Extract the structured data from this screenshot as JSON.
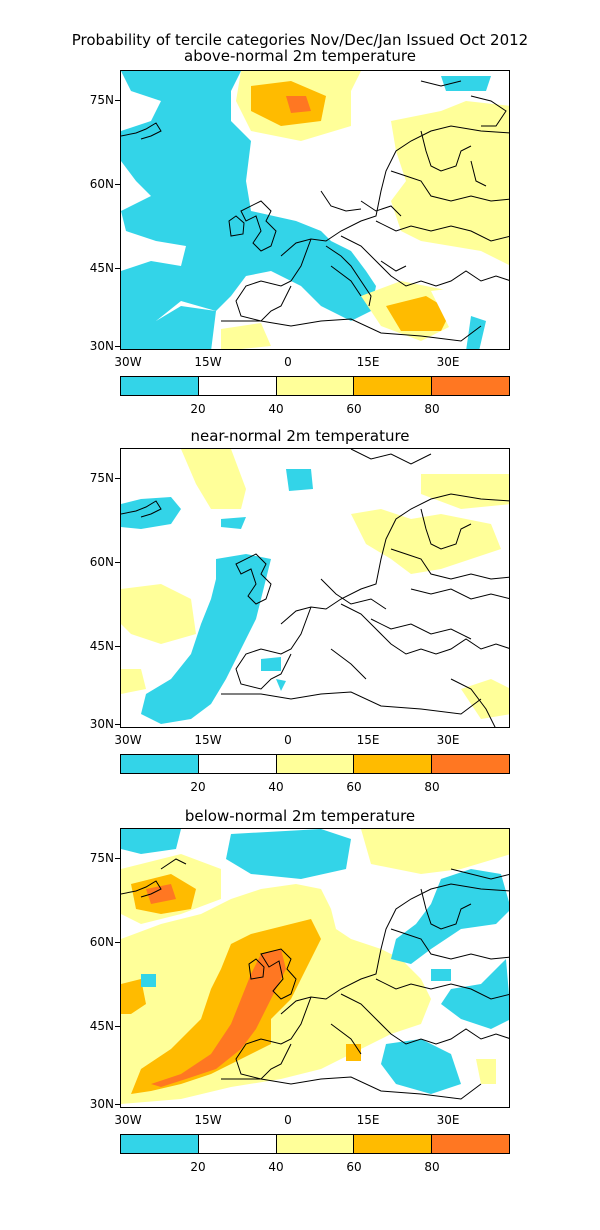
{
  "title_line1": "Probability of tercile categories Nov/Dec/Jan Issued Oct 2012",
  "colors": {
    "c0": "#33d4e8",
    "c1": "#ffffff",
    "c2": "#ffff99",
    "c3": "#ffbb00",
    "c4": "#ff7722"
  },
  "lat_labels": [
    "75N",
    "60N",
    "45N",
    "30N"
  ],
  "lon_labels": [
    "30W",
    "15W",
    "0",
    "15E",
    "30E"
  ],
  "colorbar_labels": [
    "20",
    "40",
    "60",
    "80"
  ],
  "panels": [
    {
      "subtitle": "above-normal 2m temperature"
    },
    {
      "subtitle": "near-normal 2m temperature"
    },
    {
      "subtitle": "below-normal 2m temperature"
    }
  ]
}
